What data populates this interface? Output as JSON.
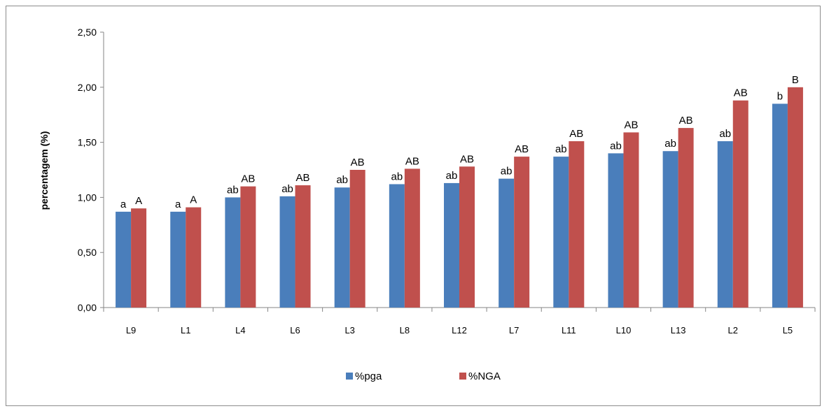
{
  "chart_data": {
    "type": "bar",
    "title": "",
    "xlabel": "",
    "ylabel": "percentagem (%)",
    "ylim": [
      0,
      2.5
    ],
    "y_ticks": [
      "0,00",
      "0,50",
      "1,00",
      "1,50",
      "2,00",
      "2,50"
    ],
    "categories": [
      "L9",
      "L1",
      "L4",
      "L6",
      "L3",
      "L8",
      "L12",
      "L7",
      "L11",
      "L10",
      "L13",
      "L2",
      "L5"
    ],
    "series": [
      {
        "name": "%pga",
        "color": "#4a7ebb",
        "values": [
          0.87,
          0.87,
          1.0,
          1.01,
          1.09,
          1.12,
          1.13,
          1.17,
          1.37,
          1.4,
          1.42,
          1.51,
          1.85
        ],
        "labels": [
          "a",
          "a",
          "ab",
          "ab",
          "ab",
          "ab",
          "ab",
          "ab",
          "ab",
          "ab",
          "ab",
          "ab",
          "b"
        ]
      },
      {
        "name": "%NGA",
        "color": "#c0504d",
        "values": [
          0.9,
          0.91,
          1.1,
          1.11,
          1.25,
          1.26,
          1.28,
          1.37,
          1.51,
          1.59,
          1.63,
          1.88,
          2.0
        ],
        "labels": [
          "A",
          "A",
          "AB",
          "AB",
          "AB",
          "AB",
          "AB",
          "AB",
          "AB",
          "AB",
          "AB",
          "AB",
          "B"
        ]
      }
    ],
    "grid": false,
    "legend_position": "bottom"
  }
}
